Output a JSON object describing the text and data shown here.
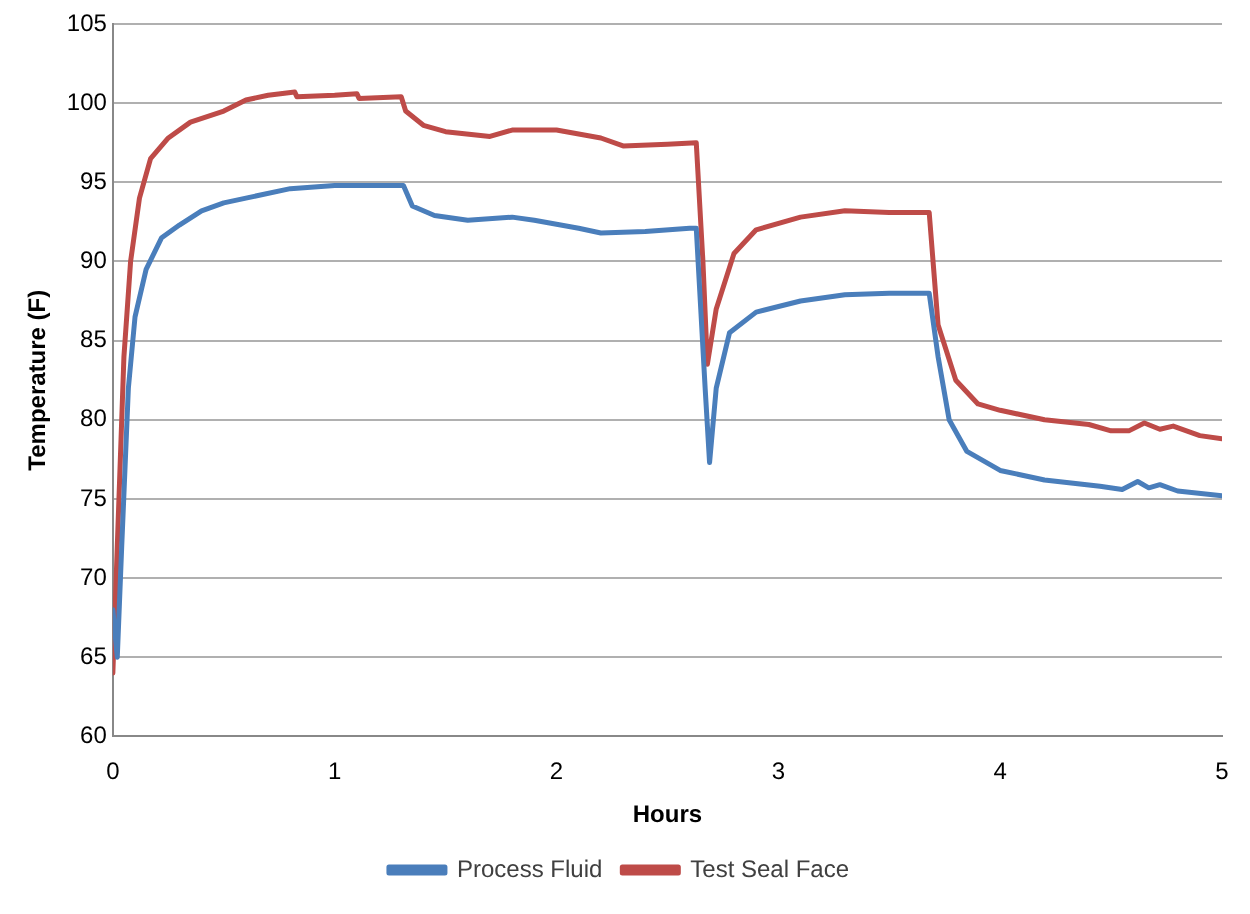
{
  "chart_data": {
    "type": "line",
    "xlabel": "Hours",
    "ylabel": "Temperature (F)",
    "xlim": [
      0,
      5
    ],
    "xticks": [
      0,
      1,
      2,
      3,
      4,
      5
    ],
    "ylim": [
      60,
      105
    ],
    "yticks": [
      60,
      65,
      70,
      75,
      80,
      85,
      90,
      95,
      100,
      105
    ],
    "grid": "y",
    "legend": "bottom",
    "marker": "none",
    "series": [
      {
        "name": "Process Fluid",
        "color": "#4a7ebb",
        "x": [
          0,
          0.02,
          0.04,
          0.07,
          0.1,
          0.15,
          0.22,
          0.3,
          0.4,
          0.5,
          0.6,
          0.8,
          1.0,
          1.1,
          1.31,
          1.35,
          1.45,
          1.6,
          1.8,
          1.9,
          2.1,
          2.2,
          2.4,
          2.6,
          2.63,
          2.67,
          2.69,
          2.72,
          2.78,
          2.9,
          3.1,
          3.3,
          3.5,
          3.68,
          3.72,
          3.77,
          3.85,
          4.0,
          4.2,
          4.45,
          4.55,
          4.62,
          4.67,
          4.72,
          4.8,
          5.0
        ],
        "values": [
          68,
          65,
          72,
          82,
          86.5,
          89.5,
          91.5,
          92.3,
          93.2,
          93.7,
          94.0,
          94.6,
          94.8,
          94.8,
          94.8,
          93.5,
          92.9,
          92.6,
          92.8,
          92.6,
          92.1,
          91.8,
          91.9,
          92.1,
          92.1,
          82,
          77.3,
          82,
          85.5,
          86.8,
          87.5,
          87.9,
          88,
          88,
          84,
          80,
          78,
          76.8,
          76.2,
          75.8,
          75.6,
          76.1,
          75.7,
          75.9,
          75.5,
          75.2
        ]
      },
      {
        "name": "Test Seal Face",
        "color": "#be4b48",
        "x": [
          0,
          0.02,
          0.05,
          0.08,
          0.12,
          0.17,
          0.25,
          0.35,
          0.5,
          0.6,
          0.7,
          0.82,
          0.83,
          1.0,
          1.1,
          1.11,
          1.3,
          1.32,
          1.4,
          1.5,
          1.7,
          1.8,
          2.0,
          2.2,
          2.3,
          2.5,
          2.63,
          2.66,
          2.68,
          2.72,
          2.8,
          2.9,
          3.1,
          3.3,
          3.5,
          3.68,
          3.72,
          3.8,
          3.9,
          4.0,
          4.2,
          4.4,
          4.5,
          4.58,
          4.65,
          4.72,
          4.78,
          4.9,
          5.0
        ],
        "values": [
          64,
          72,
          84,
          90,
          94,
          96.5,
          97.8,
          98.8,
          99.5,
          100.2,
          100.5,
          100.7,
          100.4,
          100.5,
          100.6,
          100.3,
          100.4,
          99.5,
          98.6,
          98.2,
          97.9,
          98.3,
          98.3,
          97.8,
          97.3,
          97.4,
          97.5,
          90,
          83.5,
          87,
          90.5,
          92,
          92.8,
          93.2,
          93.1,
          93.1,
          86,
          82.5,
          81,
          80.6,
          80.0,
          79.7,
          79.3,
          79.3,
          79.8,
          79.4,
          79.6,
          79.0,
          78.8
        ]
      }
    ]
  }
}
